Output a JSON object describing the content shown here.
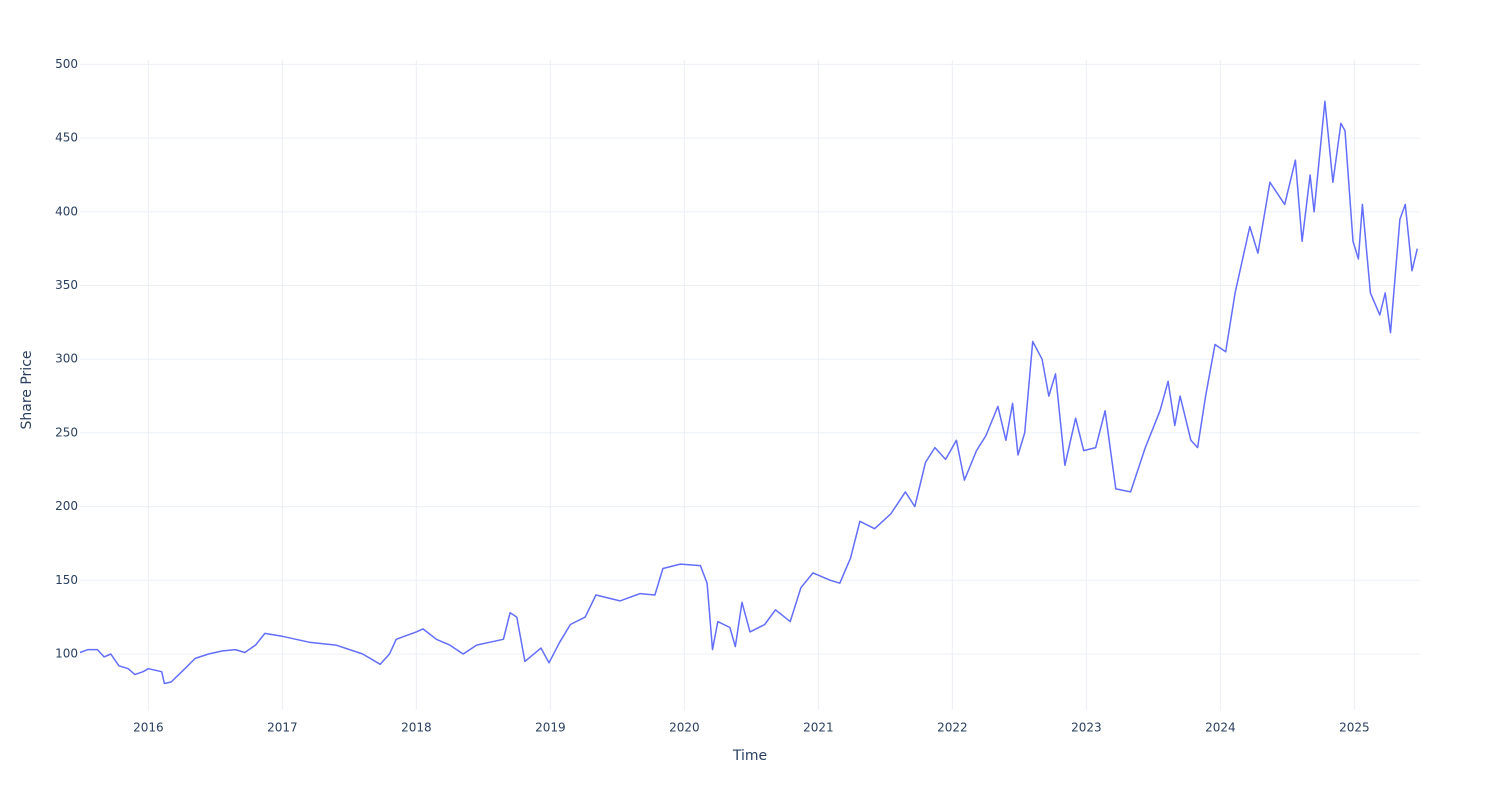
{
  "chart_data": {
    "type": "line",
    "x_label": "Time",
    "y_label": "Share Price",
    "x": [
      2015.49,
      2015.55,
      2015.62,
      2015.67,
      2015.72,
      2015.78,
      2015.85,
      2015.9,
      2015.96,
      2016.0,
      2016.05,
      2016.1,
      2016.12,
      2016.17,
      2016.25,
      2016.35,
      2016.45,
      2016.55,
      2016.65,
      2016.72,
      2016.8,
      2016.87,
      2017.0,
      2017.2,
      2017.4,
      2017.6,
      2017.73,
      2017.8,
      2017.85,
      2018.0,
      2018.05,
      2018.15,
      2018.25,
      2018.35,
      2018.45,
      2018.55,
      2018.65,
      2018.7,
      2018.75,
      2018.81,
      2018.93,
      2018.99,
      2019.07,
      2019.15,
      2019.26,
      2019.34,
      2019.52,
      2019.67,
      2019.78,
      2019.84,
      2019.97,
      2020.12,
      2020.17,
      2020.21,
      2020.25,
      2020.34,
      2020.38,
      2020.43,
      2020.49,
      2020.6,
      2020.68,
      2020.79,
      2020.87,
      2020.96,
      2021.09,
      2021.16,
      2021.24,
      2021.31,
      2021.42,
      2021.54,
      2021.65,
      2021.72,
      2021.8,
      2021.87,
      2021.95,
      2022.03,
      2022.09,
      2022.18,
      2022.25,
      2022.34,
      2022.4,
      2022.45,
      2022.49,
      2022.54,
      2022.6,
      2022.67,
      2022.72,
      2022.77,
      2022.84,
      2022.92,
      2022.98,
      2023.07,
      2023.14,
      2023.22,
      2023.33,
      2023.44,
      2023.55,
      2023.61,
      2023.66,
      2023.7,
      2023.78,
      2023.83,
      2023.89,
      2023.96,
      2024.04,
      2024.11,
      2024.22,
      2024.28,
      2024.37,
      2024.48,
      2024.56,
      2024.61,
      2024.67,
      2024.7,
      2024.78,
      2024.84,
      2024.9,
      2024.93,
      2024.99,
      2025.03,
      2025.06,
      2025.12,
      2025.19,
      2025.23,
      2025.27,
      2025.34,
      2025.38,
      2025.43,
      2025.47
    ],
    "series": [
      {
        "name": "Share Price",
        "color": "#636efa",
        "values": [
          101,
          103,
          103,
          98,
          100,
          92,
          90,
          86,
          88,
          90,
          89,
          88,
          80,
          81,
          88,
          97,
          100,
          102,
          103,
          101,
          106,
          114,
          112,
          108,
          106,
          100,
          93,
          100,
          110,
          115,
          117,
          110,
          106,
          100,
          106,
          108,
          110,
          128,
          125,
          95,
          104,
          94,
          108,
          120,
          125,
          140,
          136,
          141,
          140,
          158,
          161,
          160,
          148,
          103,
          122,
          118,
          105,
          135,
          115,
          120,
          130,
          122,
          145,
          155,
          150,
          148,
          165,
          190,
          185,
          195,
          210,
          200,
          230,
          240,
          232,
          245,
          218,
          238,
          248,
          268,
          245,
          270,
          235,
          250,
          312,
          300,
          275,
          290,
          228,
          260,
          238,
          240,
          265,
          212,
          210,
          240,
          265,
          285,
          255,
          275,
          245,
          240,
          275,
          310,
          305,
          345,
          390,
          372,
          420,
          405,
          435,
          380,
          425,
          400,
          475,
          420,
          460,
          455,
          380,
          368,
          405,
          345,
          330,
          345,
          318,
          395,
          405,
          360,
          375
        ]
      }
    ],
    "xlim": [
      2015.49,
      2025.49
    ],
    "xticks": [
      2016,
      2017,
      2018,
      2019,
      2020,
      2021,
      2022,
      2023,
      2024,
      2025
    ],
    "ylim": [
      62,
      503
    ],
    "yticks": [
      100,
      150,
      200,
      250,
      300,
      350,
      400,
      450,
      500
    ],
    "grid": true
  }
}
